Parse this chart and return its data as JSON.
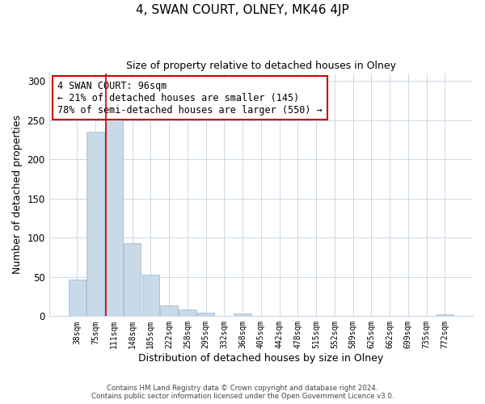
{
  "title": "4, SWAN COURT, OLNEY, MK46 4JP",
  "subtitle": "Size of property relative to detached houses in Olney",
  "xlabel": "Distribution of detached houses by size in Olney",
  "ylabel": "Number of detached properties",
  "bar_labels": [
    "38sqm",
    "75sqm",
    "111sqm",
    "148sqm",
    "185sqm",
    "222sqm",
    "258sqm",
    "295sqm",
    "332sqm",
    "368sqm",
    "405sqm",
    "442sqm",
    "478sqm",
    "515sqm",
    "552sqm",
    "589sqm",
    "625sqm",
    "662sqm",
    "699sqm",
    "735sqm",
    "772sqm"
  ],
  "bar_values": [
    47,
    235,
    251,
    93,
    53,
    14,
    9,
    4,
    0,
    3,
    0,
    0,
    0,
    0,
    0,
    0,
    0,
    0,
    0,
    0,
    2
  ],
  "bar_color": "#c8d9e8",
  "bar_edge_color": "#9ab5cb",
  "ylim": [
    0,
    310
  ],
  "yticks": [
    0,
    50,
    100,
    150,
    200,
    250,
    300
  ],
  "annotation_box_text": "4 SWAN COURT: 96sqm\n← 21% of detached houses are smaller (145)\n78% of semi-detached houses are larger (550) →",
  "red_line_color": "#cc0000",
  "footer_line1": "Contains HM Land Registry data © Crown copyright and database right 2024.",
  "footer_line2": "Contains public sector information licensed under the Open Government Licence v3.0.",
  "background_color": "#ffffff",
  "grid_color": "#ccd9e5"
}
